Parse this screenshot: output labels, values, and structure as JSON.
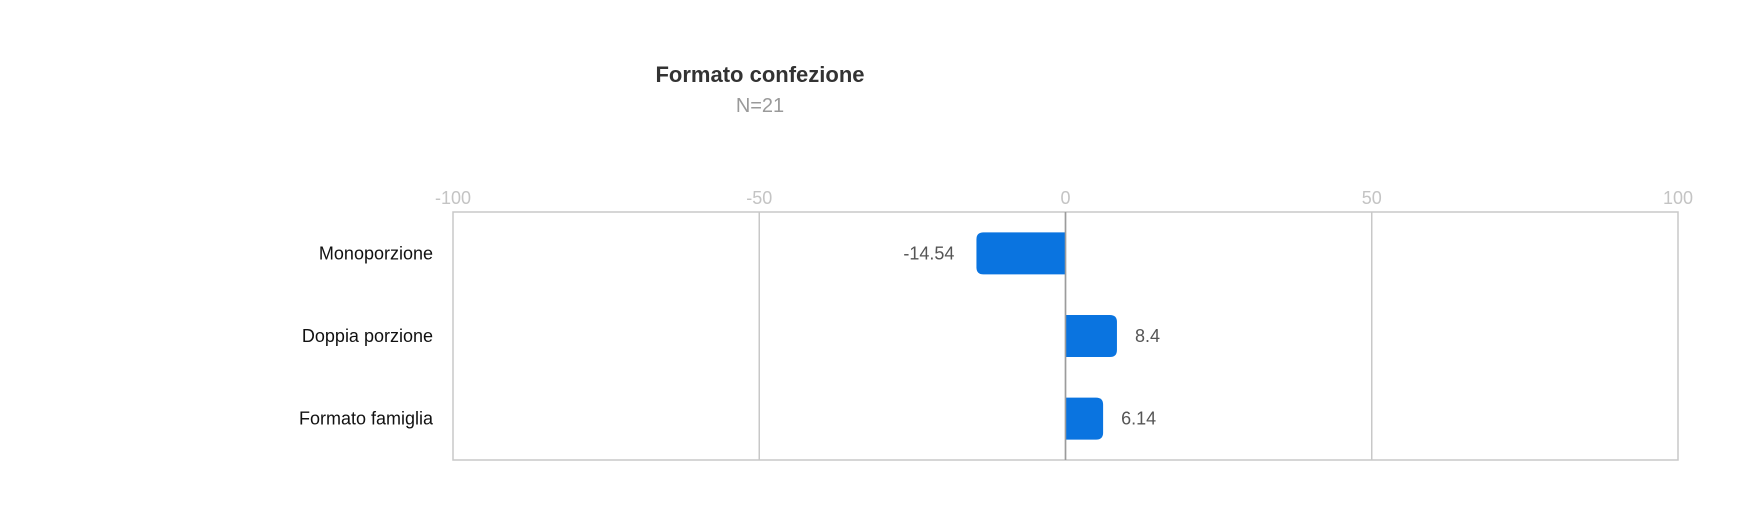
{
  "chart_data": {
    "type": "bar",
    "orientation": "horizontal",
    "title": "Formato confezione",
    "subtitle": "N=21",
    "categories": [
      "Monoporzione",
      "Doppia porzione",
      "Formato famiglia"
    ],
    "values": [
      -14.54,
      8.4,
      6.14
    ],
    "value_labels": [
      "-14.54",
      "8.4",
      "6.14"
    ],
    "xlim": [
      -100,
      100
    ],
    "ticks": [
      -100,
      -50,
      0,
      50,
      100
    ],
    "tick_labels": [
      "-100",
      "-50",
      "0",
      "50",
      "100"
    ],
    "grid": true,
    "bar_color": "#0a74e0"
  }
}
